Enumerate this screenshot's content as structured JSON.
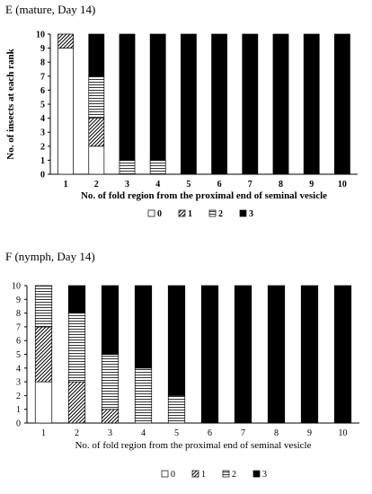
{
  "chart_data": [
    {
      "type": "bar",
      "stacked": true,
      "title": "E (mature, Day 14)",
      "xlabel": "No. of fold region from the proximal end of seminal vesicle",
      "ylabel": "No. of insects at each rank",
      "categories": [
        "1",
        "2",
        "3",
        "4",
        "5",
        "6",
        "7",
        "8",
        "9",
        "10"
      ],
      "ylim": [
        0,
        10
      ],
      "yticks": [
        "0",
        "1",
        "2",
        "3",
        "4",
        "5",
        "6",
        "7",
        "8",
        "9",
        "10"
      ],
      "grid": false,
      "bold_labels": true,
      "legend_position": "bottom",
      "series": [
        {
          "name": "0",
          "pattern": "white",
          "values": [
            9,
            2,
            0,
            0,
            0,
            0,
            0,
            0,
            0,
            0
          ]
        },
        {
          "name": "1",
          "pattern": "diagonal",
          "values": [
            1,
            2,
            0,
            0,
            0,
            0,
            0,
            0,
            0,
            0
          ]
        },
        {
          "name": "2",
          "pattern": "horizontal",
          "values": [
            0,
            3,
            1,
            1,
            0,
            0,
            0,
            0,
            0,
            0
          ]
        },
        {
          "name": "3",
          "pattern": "black",
          "values": [
            0,
            3,
            9,
            9,
            10,
            10,
            10,
            10,
            10,
            10
          ]
        }
      ]
    },
    {
      "type": "bar",
      "stacked": true,
      "title": "F (nymph, Day 14)",
      "xlabel": "No. of fold region from the proximal end of seminal vesicle",
      "ylabel": "",
      "categories": [
        "1",
        "2",
        "3",
        "4",
        "5",
        "6",
        "7",
        "8",
        "9",
        "10"
      ],
      "ylim": [
        0,
        10
      ],
      "yticks": [
        "0",
        "1",
        "2",
        "3",
        "4",
        "5",
        "6",
        "7",
        "8",
        "9",
        "10"
      ],
      "grid": false,
      "bold_labels": false,
      "legend_position": "bottom",
      "series": [
        {
          "name": "0",
          "pattern": "white",
          "values": [
            3,
            0,
            0,
            0,
            0,
            0,
            0,
            0,
            0,
            0
          ]
        },
        {
          "name": "1",
          "pattern": "diagonal",
          "values": [
            4,
            3,
            1,
            0,
            0,
            0,
            0,
            0,
            0,
            0
          ]
        },
        {
          "name": "2",
          "pattern": "horizontal",
          "values": [
            3,
            5,
            4,
            4,
            2,
            0,
            0,
            0,
            0,
            0
          ]
        },
        {
          "name": "3",
          "pattern": "black",
          "values": [
            0,
            2,
            5,
            6,
            8,
            10,
            10,
            10,
            10,
            10
          ]
        }
      ]
    }
  ]
}
